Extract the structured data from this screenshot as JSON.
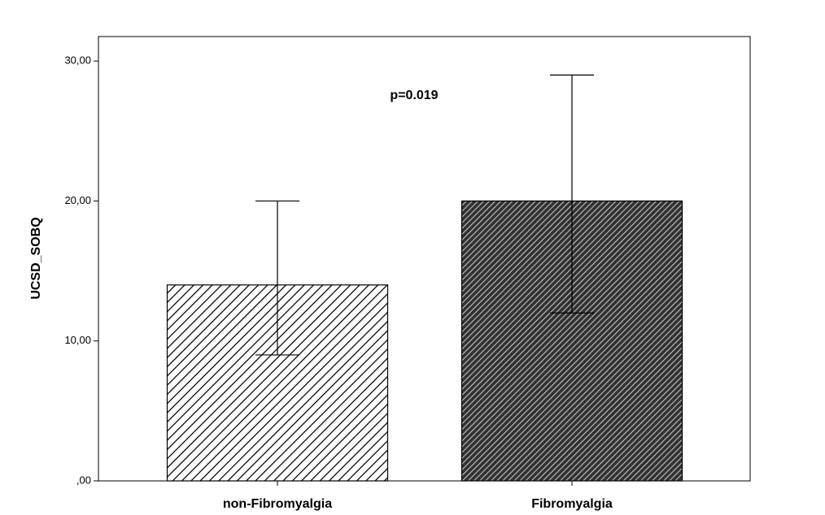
{
  "chart_data": {
    "type": "bar",
    "ylabel": "UCSD_SOBQ",
    "annotation": "p=0.019",
    "categories": [
      "non-Fibromyalgia",
      "Fibromyalgia"
    ],
    "values": [
      14,
      20
    ],
    "error_lower": [
      9,
      12
    ],
    "error_upper": [
      20,
      29
    ],
    "colors": [
      "#ffffff",
      "#333333"
    ],
    "hatch_colors": [
      "#000000",
      "#ffffff"
    ],
    "ylim": [
      0,
      31.75
    ],
    "yticks": [
      {
        "value": 0,
        "label": ",00"
      },
      {
        "value": 10,
        "label": "10,00"
      },
      {
        "value": 20,
        "label": "20,00"
      },
      {
        "value": 30,
        "label": "30,00"
      }
    ],
    "grid": false
  }
}
